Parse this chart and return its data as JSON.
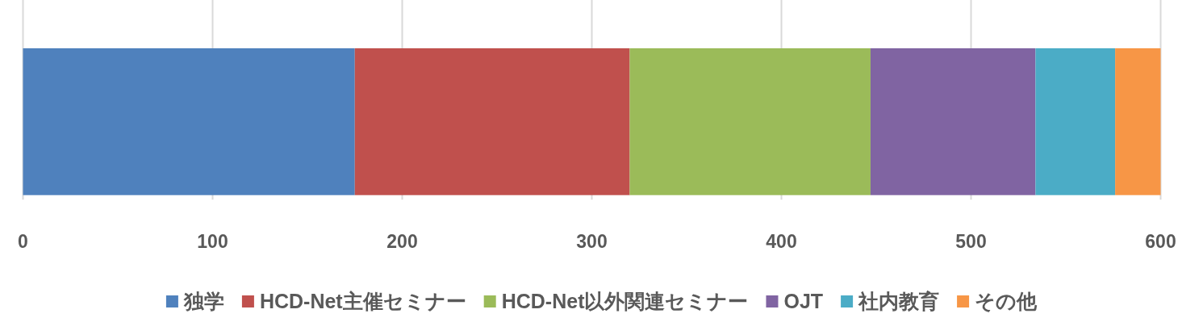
{
  "chart_data": {
    "type": "bar",
    "orientation": "horizontal",
    "stacked": true,
    "categories": [
      null
    ],
    "series": [
      {
        "name": "独学",
        "color": "#4f81bd",
        "values": [
          175
        ]
      },
      {
        "name": "HCD-Net主催セミナー",
        "color": "#c0504d",
        "values": [
          145
        ]
      },
      {
        "name": "HCD-Net以外関連セミナー",
        "color": "#9bbb59",
        "values": [
          127
        ]
      },
      {
        "name": "OJT",
        "color": "#8064a2",
        "values": [
          87
        ]
      },
      {
        "name": "社内教育",
        "color": "#4bacc6",
        "values": [
          42
        ]
      },
      {
        "name": "その他",
        "color": "#f79646",
        "values": [
          24
        ]
      }
    ],
    "xlim": [
      0,
      600
    ],
    "xticks": [
      0,
      100,
      200,
      300,
      400,
      500,
      600
    ],
    "grid": "x",
    "legend": "bottom"
  }
}
